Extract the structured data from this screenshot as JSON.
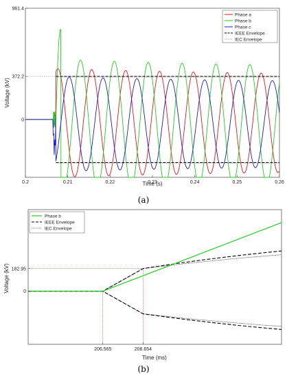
{
  "chart_data": [
    {
      "type": "line",
      "caption": "(a)",
      "xlabel": "Time (s)",
      "ylabel": "Voltage (kV)",
      "xlim": [
        0.2,
        0.26
      ],
      "ylim": [
        -500,
        961.4
      ],
      "xticks": [
        "0.2",
        "0.21",
        "0.22",
        "0.23",
        "0.24",
        "0.25",
        "0.26"
      ],
      "yticks": [
        "961.4",
        "372.2",
        "0"
      ],
      "ytick_values": [
        961.4,
        372.2,
        0
      ],
      "fault_time": 0.2065,
      "breaker_time": 0.2072,
      "frequency_hz": 125,
      "legend": {
        "position": "top-right",
        "entries": [
          "Phase a",
          "Phase b",
          "Phase c",
          "IEEE Envelope",
          "IEC Envelope"
        ]
      },
      "series": [
        {
          "name": "Phase a",
          "color": "#e8141e",
          "amplitude": 470,
          "offset": -30,
          "phase": 0
        },
        {
          "name": "Phase b",
          "color": "#22cc22",
          "amplitude": 560,
          "offset": -40,
          "phase": 2.09,
          "peak": 961.4
        },
        {
          "name": "Phase c",
          "color": "#1a1acc",
          "amplitude": 410,
          "offset": -40,
          "phase": 4.19
        },
        {
          "name": "IEEE Envelope",
          "color": "#000000",
          "upper": 372.2,
          "lower": -372.2
        },
        {
          "name": "IEC Envelope",
          "color": "#888888",
          "upper": 372.2,
          "lower": -372.2
        }
      ]
    },
    {
      "type": "line",
      "caption": "(b)",
      "xlabel": "Time (ms)",
      "ylabel": "Voltage (kV)",
      "xlim": [
        206.4,
        206.96
      ],
      "ylim": [
        -430,
        660
      ],
      "xticks": [
        "206.565",
        "206.654"
      ],
      "xtick_values": [
        206.565,
        206.654
      ],
      "yticks": [
        "182.95",
        "0"
      ],
      "ytick_values": [
        182.95,
        0
      ],
      "legend": {
        "position": "top-left",
        "entries": [
          "Phase b",
          "IEEE Envelope",
          "IEC Envelope"
        ]
      },
      "series": [
        {
          "name": "Phase b",
          "color": "#22cc22",
          "x": [
            206.4,
            206.565,
            206.96
          ],
          "y": [
            0,
            0,
            555
          ]
        },
        {
          "name": "IEEE Envelope",
          "color": "#000000",
          "x": [
            206.4,
            206.565,
            206.654,
            206.96
          ],
          "y_upper": [
            0,
            0,
            182.95,
            325
          ],
          "y_lower": [
            0,
            0,
            -182.95,
            -310
          ]
        },
        {
          "name": "IEC Envelope",
          "color": "#000000",
          "x": [
            206.4,
            206.565,
            206.654,
            206.96
          ],
          "y_upper": [
            0,
            0,
            182.95,
            295
          ],
          "y_lower": [
            0,
            0,
            -182.95,
            -285
          ]
        }
      ]
    }
  ]
}
